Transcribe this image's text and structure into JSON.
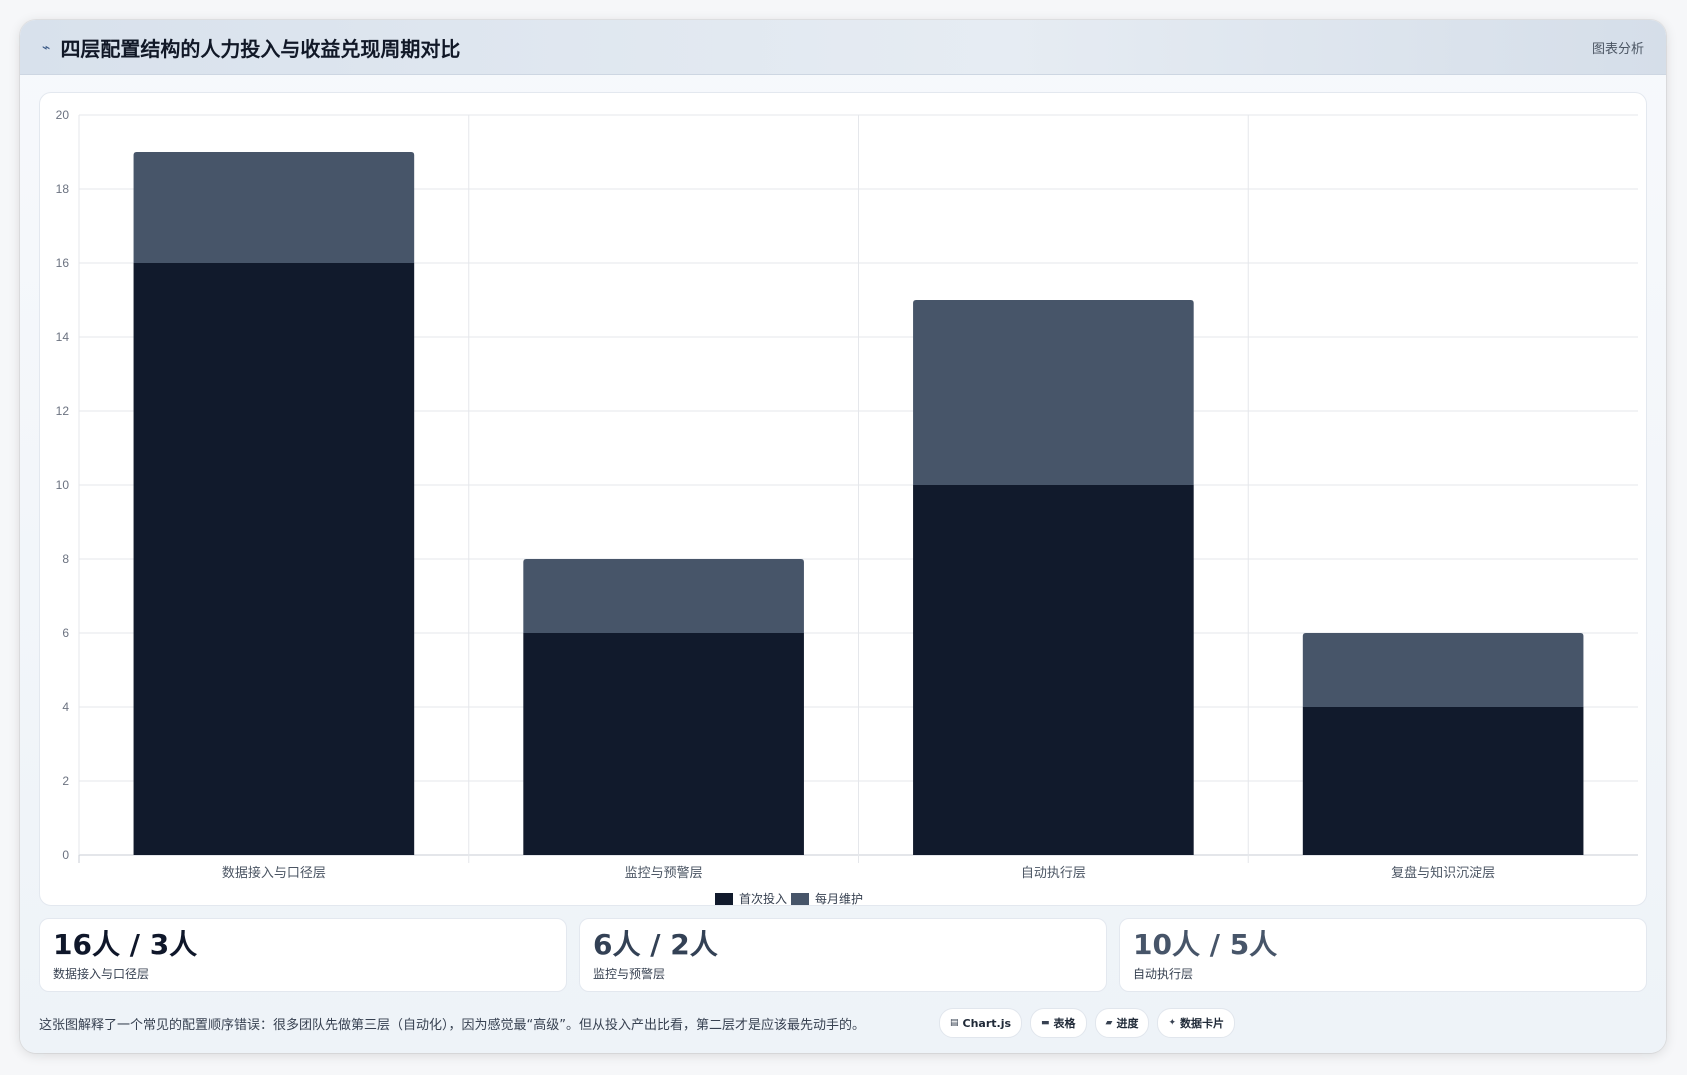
{
  "header": {
    "icon": "trend-icon",
    "title": "四层配置结构的人力投入与收益兑现周期对比",
    "badge": "图表分析"
  },
  "chart_data": {
    "type": "bar",
    "stacked": true,
    "categories": [
      "数据接入与口径层",
      "监控与预警层",
      "自动执行层",
      "复盘与知识沉淀层"
    ],
    "series": [
      {
        "name": "首次投入",
        "values": [
          16,
          6,
          10,
          4
        ],
        "color": "#111a2c"
      },
      {
        "name": "每月维护",
        "values": [
          3,
          2,
          5,
          2
        ],
        "color": "#475569"
      }
    ],
    "ylim": [
      0,
      20
    ],
    "yticks": [
      0,
      2,
      4,
      6,
      8,
      10,
      12,
      14,
      16,
      18,
      20
    ],
    "grid": true,
    "legend": "bottom-center"
  },
  "stats": [
    {
      "value": "16人 / 3人",
      "label": "数据接入与口径层",
      "color": "#0f172a"
    },
    {
      "value": "6人 / 2人",
      "label": "监控与预警层",
      "color": "#334155"
    },
    {
      "value": "10人 / 5人",
      "label": "自动执行层",
      "color": "#475569"
    }
  ],
  "footer": {
    "note": "这张图解释了一个常见的配置顺序错误：很多团队先做第三层（自动化），因为感觉最“高级”。但从投入产出比看，第二层才是应该最先动手的。",
    "chips": [
      {
        "icon": "chart-icon",
        "label": "Chart.js"
      },
      {
        "icon": "table-icon",
        "label": "表格"
      },
      {
        "icon": "progress-icon",
        "label": "进度"
      },
      {
        "icon": "card-icon",
        "label": "数据卡片"
      }
    ]
  }
}
